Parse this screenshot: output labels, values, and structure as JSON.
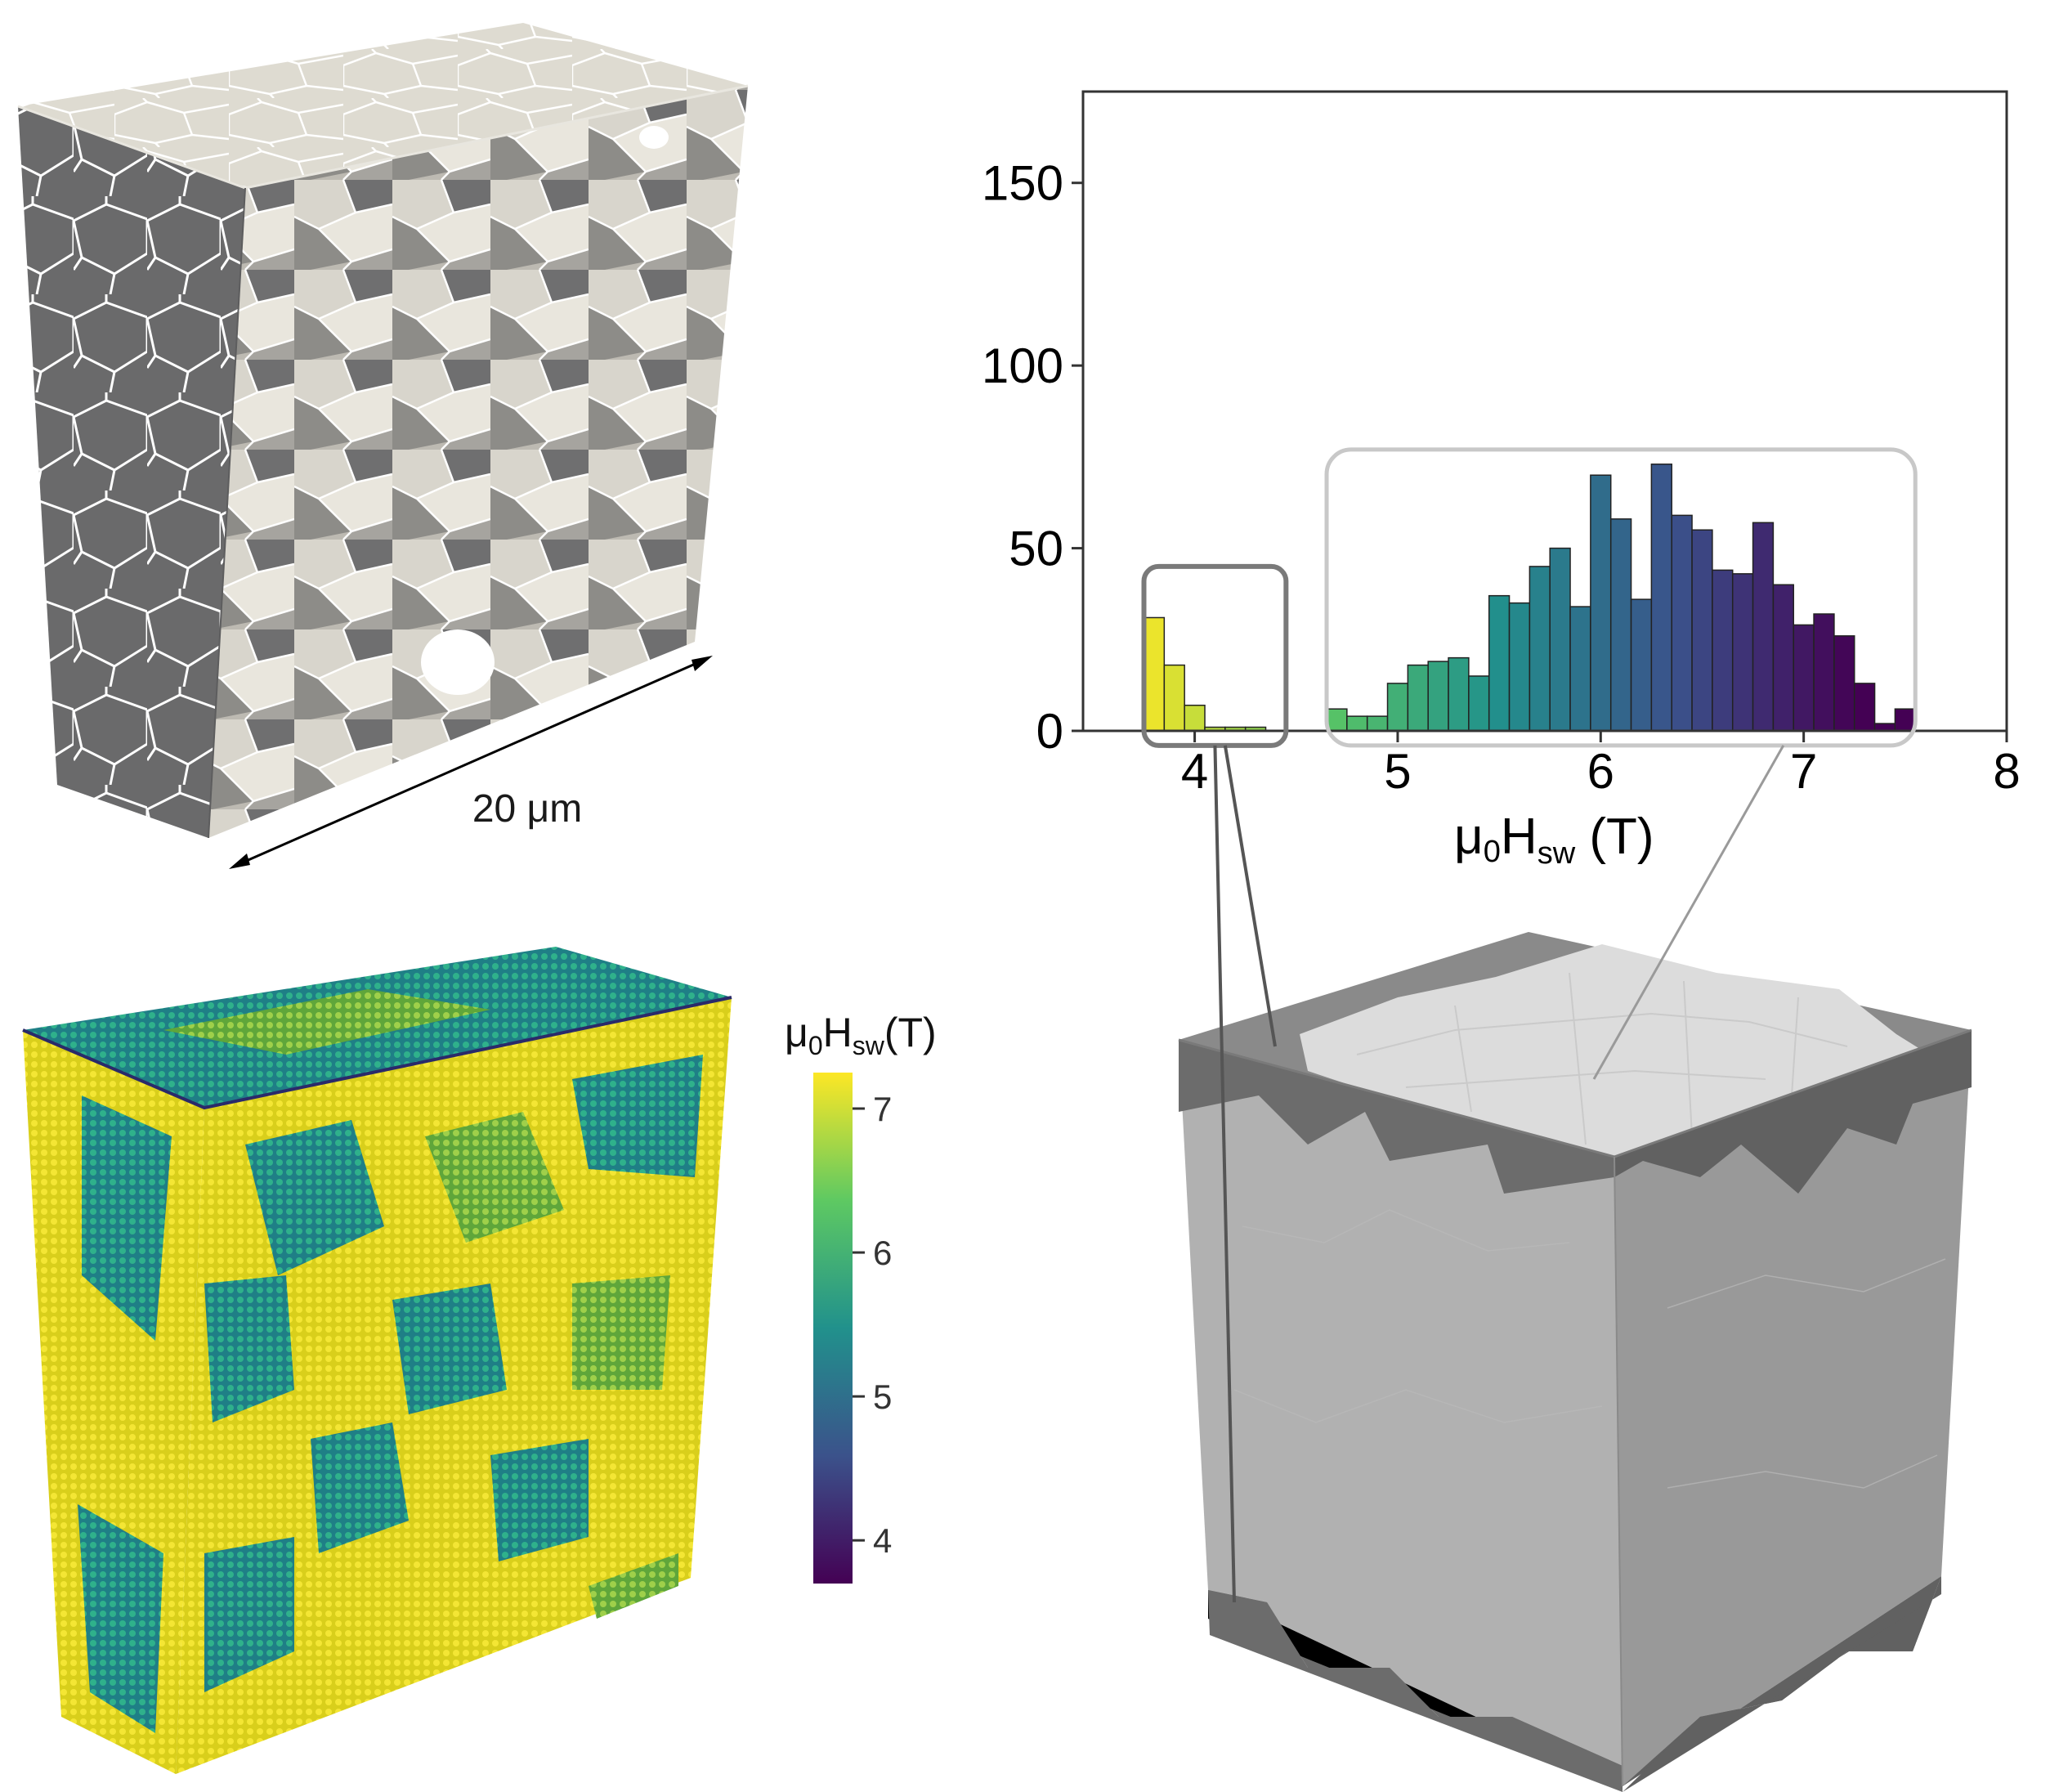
{
  "scale_bar": {
    "label": "20 μm"
  },
  "colorbar": {
    "title_main": "μ",
    "title_sub0": "0",
    "title_H": "H",
    "title_sub": "sw",
    "title_tail": "(T)",
    "ticks": [
      "7",
      "6",
      "5",
      "4"
    ],
    "range": [
      3.7,
      7.25
    ],
    "colors": [
      "#440154",
      "#3b528b",
      "#21918c",
      "#5ec962",
      "#fde725"
    ]
  },
  "chart_data": {
    "type": "bar",
    "xlabel_main": "μ",
    "xlabel_sub0": "0",
    "xlabel_H": "H",
    "xlabel_sub": "sw",
    "xlabel_tail": " (T)",
    "xlim": [
      3.45,
      8
    ],
    "ylim": [
      0,
      175
    ],
    "x_ticks": [
      "4",
      "5",
      "6",
      "7",
      "8"
    ],
    "y_ticks": [
      "0",
      "50",
      "100",
      "150"
    ],
    "bin_width": 0.1,
    "bins": [
      {
        "x": 3.8,
        "value": 31
      },
      {
        "x": 3.9,
        "value": 18
      },
      {
        "x": 4.0,
        "value": 7
      },
      {
        "x": 4.1,
        "value": 1
      },
      {
        "x": 4.2,
        "value": 1
      },
      {
        "x": 4.3,
        "value": 1
      },
      {
        "x": 4.7,
        "value": 6
      },
      {
        "x": 4.8,
        "value": 4
      },
      {
        "x": 4.9,
        "value": 4
      },
      {
        "x": 5.0,
        "value": 13
      },
      {
        "x": 5.1,
        "value": 18
      },
      {
        "x": 5.2,
        "value": 19
      },
      {
        "x": 5.3,
        "value": 20
      },
      {
        "x": 5.4,
        "value": 15
      },
      {
        "x": 5.5,
        "value": 37
      },
      {
        "x": 5.6,
        "value": 35
      },
      {
        "x": 5.7,
        "value": 45
      },
      {
        "x": 5.8,
        "value": 50
      },
      {
        "x": 5.9,
        "value": 34
      },
      {
        "x": 6.0,
        "value": 70
      },
      {
        "x": 6.1,
        "value": 58
      },
      {
        "x": 6.2,
        "value": 36
      },
      {
        "x": 6.3,
        "value": 73
      },
      {
        "x": 6.4,
        "value": 59
      },
      {
        "x": 6.5,
        "value": 55
      },
      {
        "x": 6.6,
        "value": 44
      },
      {
        "x": 6.7,
        "value": 43
      },
      {
        "x": 6.8,
        "value": 57
      },
      {
        "x": 6.9,
        "value": 40
      },
      {
        "x": 7.0,
        "value": 29
      },
      {
        "x": 7.1,
        "value": 32
      },
      {
        "x": 7.2,
        "value": 26
      },
      {
        "x": 7.3,
        "value": 13
      },
      {
        "x": 7.4,
        "value": 2
      },
      {
        "x": 7.5,
        "value": 6
      }
    ],
    "highlight_low": [
      3.75,
      4.45
    ],
    "highlight_high": [
      4.65,
      7.55
    ]
  }
}
